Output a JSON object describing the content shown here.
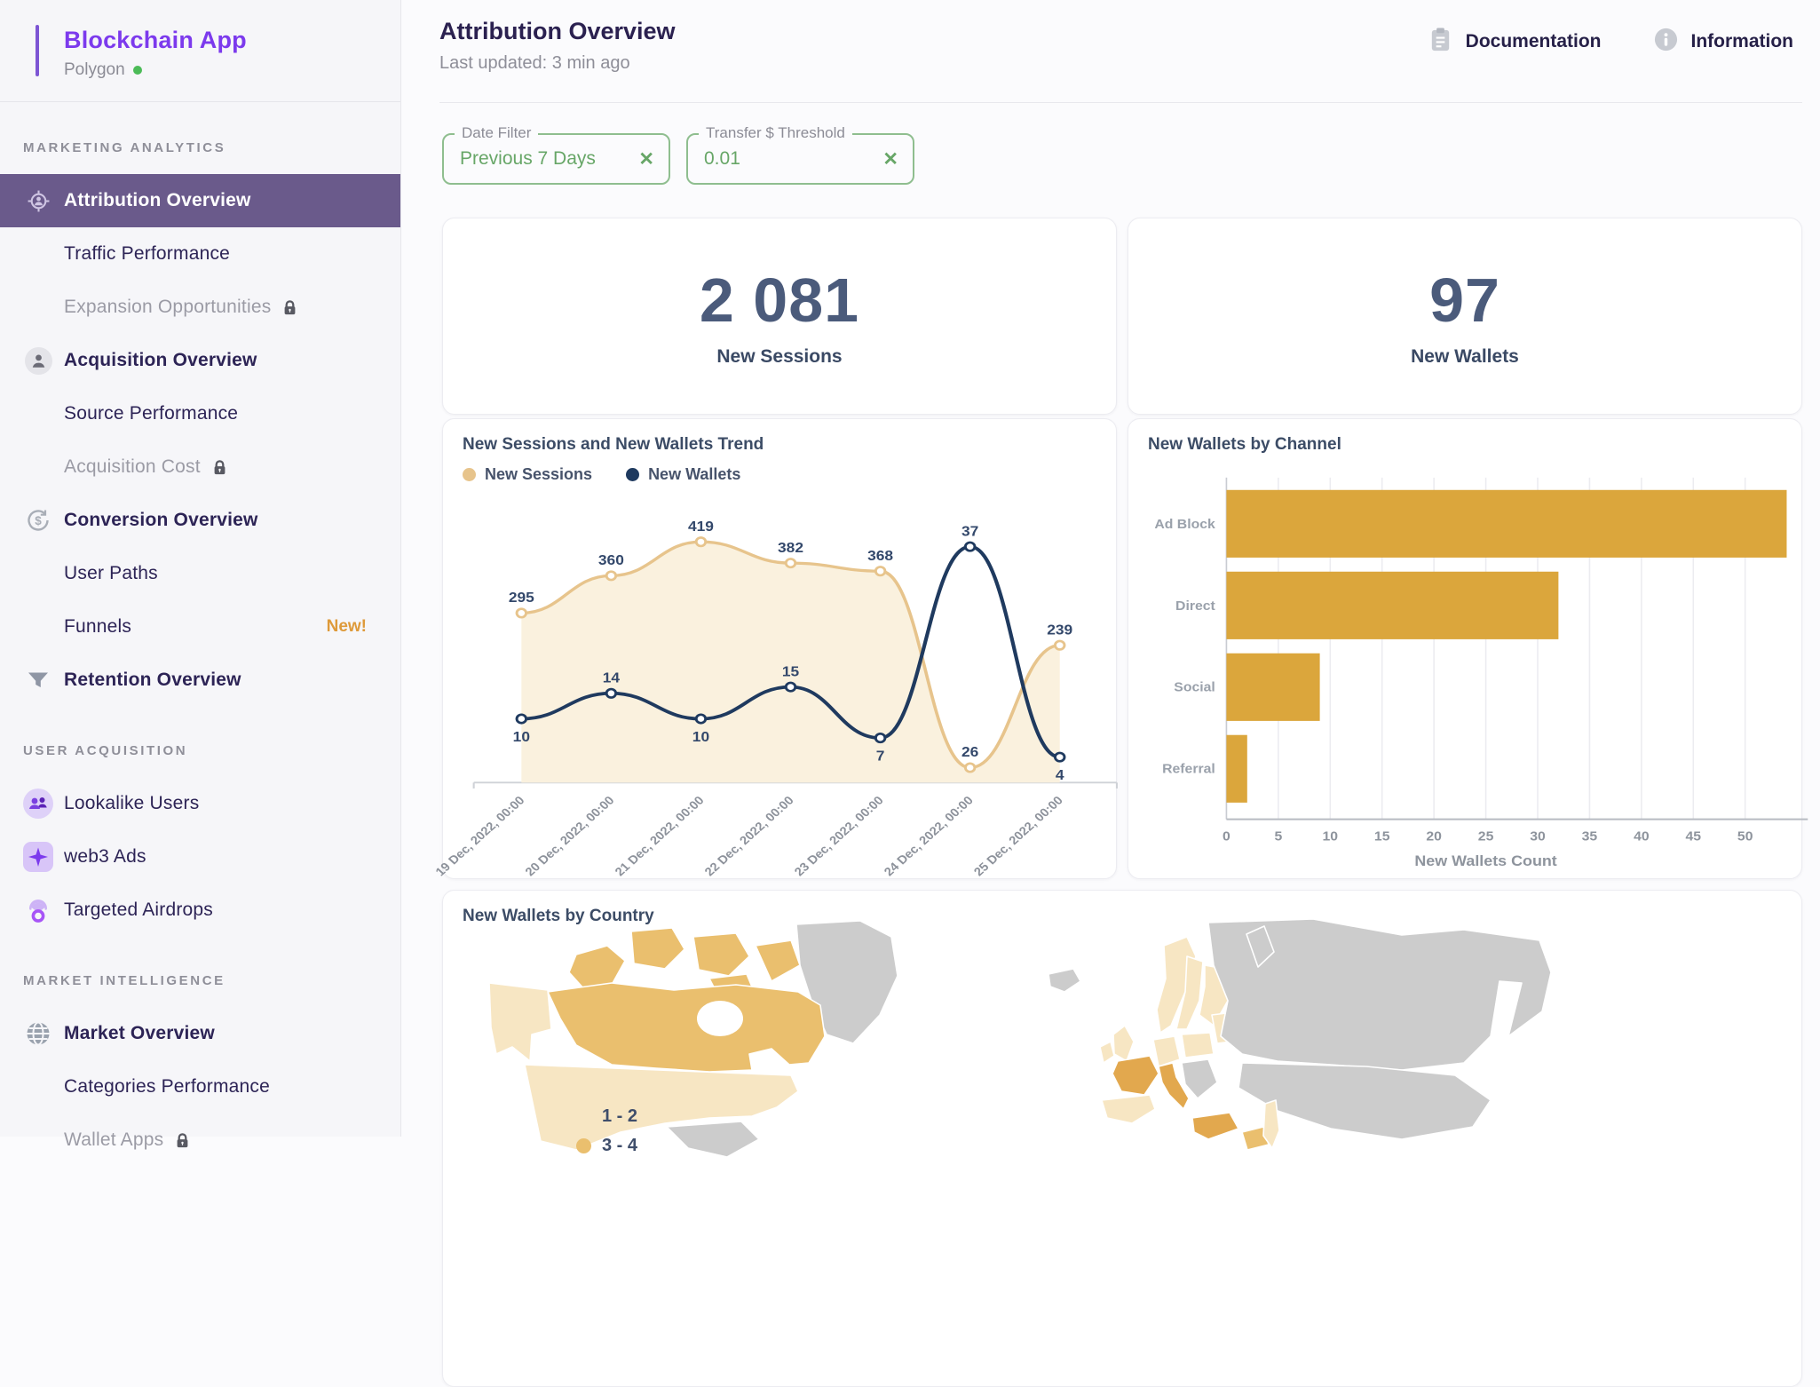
{
  "app": {
    "name": "Blockchain App",
    "network": "Polygon",
    "status_color": "#4cbb58"
  },
  "colors": {
    "accent_purple": "#7c3aed",
    "active_item_bg": "#6a5a8b",
    "filter_green": "#8fbe8f",
    "filter_text_green": "#67a667",
    "kpi_slate": "#4b5b7b",
    "sessions_tan": "#e7c48c",
    "sessions_fill": "#faf1de",
    "wallets_navy": "#1f3a5f",
    "bar_orange": "#dba63c"
  },
  "sidebar": {
    "sections": [
      {
        "label": "MARKETING ANALYTICS",
        "items": [
          {
            "label": "Attribution Overview",
            "icon": "target",
            "active": true,
            "bold": true
          },
          {
            "label": "Traffic Performance"
          },
          {
            "label": "Expansion Opportunities",
            "locked": true
          },
          {
            "label": "Acquisition Overview",
            "icon": "person",
            "bold": true
          },
          {
            "label": "Source Performance"
          },
          {
            "label": "Acquisition Cost",
            "locked": true
          },
          {
            "label": "Conversion Overview",
            "icon": "dollar",
            "bold": true
          },
          {
            "label": "User Paths"
          },
          {
            "label": "Funnels",
            "badge": "New!"
          },
          {
            "label": "Retention Overview",
            "icon": "funnel",
            "bold": true
          }
        ]
      },
      {
        "label": "USER ACQUISITION",
        "items": [
          {
            "label": "Lookalike Users",
            "icon": "users"
          },
          {
            "label": "web3 Ads",
            "icon": "sparkle"
          },
          {
            "label": "Targeted Airdrops",
            "icon": "parachute"
          }
        ]
      },
      {
        "label": "MARKET INTELLIGENCE",
        "items": [
          {
            "label": "Market Overview",
            "icon": "globe",
            "bold": true
          },
          {
            "label": "Categories Performance"
          },
          {
            "label": "Wallet Apps",
            "locked": true
          }
        ]
      }
    ]
  },
  "header": {
    "title": "Attribution Overview",
    "subtitle": "Last updated: 3 min ago",
    "actions": [
      {
        "label": "Documentation",
        "icon": "clipboard-icon"
      },
      {
        "label": "Information",
        "icon": "info-icon"
      }
    ]
  },
  "filters": [
    {
      "label": "Date Filter",
      "value": "Previous 7 Days"
    },
    {
      "label": "Transfer $ Threshold",
      "value": "0.01"
    }
  ],
  "kpis": [
    {
      "value": "2 081",
      "label": "New Sessions"
    },
    {
      "value": "97",
      "label": "New Wallets"
    }
  ],
  "chart_data": [
    {
      "type": "line",
      "title": "New Sessions and New Wallets Trend",
      "x": [
        "19 Dec, 2022, 00:00",
        "20 Dec, 2022, 00:00",
        "21 Dec, 2022, 00:00",
        "22 Dec, 2022, 00:00",
        "23 Dec, 2022, 00:00",
        "24 Dec, 2022, 00:00",
        "25 Dec, 2022, 00:00"
      ],
      "series": [
        {
          "name": "New Sessions",
          "color": "#e7c48c",
          "fill": "#faf1de",
          "ymax": 455,
          "values": [
            295,
            360,
            419,
            382,
            368,
            26,
            239
          ],
          "label_side": [
            "above",
            "above",
            "above",
            "above",
            "above",
            "above",
            "above"
          ]
        },
        {
          "name": "New Wallets",
          "color": "#1f3a5f",
          "ymax": 41,
          "values": [
            10,
            14,
            10,
            15,
            7,
            37,
            4
          ],
          "label_side": [
            "below",
            "above",
            "below",
            "above",
            "below",
            "above",
            "below"
          ]
        }
      ],
      "legend_position": "top-left",
      "grid": false
    },
    {
      "type": "bar",
      "title": "New Wallets by Channel",
      "categories": [
        "Ad Block",
        "Direct",
        "Social",
        "Referral"
      ],
      "values": [
        54,
        32,
        9,
        2
      ],
      "xlabel": "New Wallets Count",
      "xlim": [
        0,
        55
      ],
      "ticks": [
        0,
        5,
        10,
        15,
        20,
        25,
        30,
        35,
        40,
        45,
        50
      ],
      "color": "#dba63c",
      "grid": true
    },
    {
      "type": "map",
      "title": "New Wallets by Country",
      "no_data_color": "#cccccc",
      "levels": {
        "1-2": "#f7e6c3",
        "3-4": "#eabf6e",
        "3-4-strong": "#e2a84e"
      },
      "legend": [
        {
          "label": "1 - 2",
          "level": "1-2"
        },
        {
          "label": "3 - 4",
          "level": "3-4"
        }
      ],
      "countries": {
        "arctic-islands": "3-4",
        "canada": "3-4",
        "alaska": "1-2",
        "usa": "1-2",
        "greenland": "none",
        "mexico": "none",
        "iceland": "none",
        "uk": "1-2",
        "ireland": "1-2",
        "norway": "1-2",
        "sweden": "1-2",
        "finland": "1-2",
        "germany": "1-2",
        "poland": "1-2",
        "baltics": "1-2",
        "france": "3-4-strong",
        "spain": "1-2",
        "italy": "3-4-strong",
        "balkans": "none",
        "russia": "none",
        "central-asia": "none",
        "novaya-zemlya": "none",
        "turkey": "3-4-strong",
        "anatolia-east": "3-4",
        "japan": "1-2"
      }
    }
  ]
}
